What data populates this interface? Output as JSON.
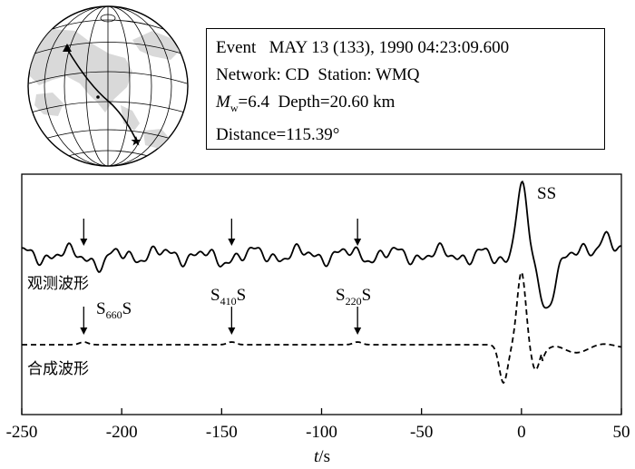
{
  "event_info": {
    "event_label": "Event",
    "event_value": "MAY 13 (133), 1990  04:23:09.600",
    "network_label": "Network:",
    "network_value": "CD",
    "station_label": "Station:",
    "station_value": "WMQ",
    "magnitude_symbol": "M",
    "magnitude_subscript": "w",
    "magnitude_value": "=6.4",
    "depth_text": "Depth=20.60 km",
    "distance_text": "Distance=115.39°"
  },
  "chart_data": {
    "type": "line",
    "x_range": [
      -250,
      50
    ],
    "x_ticks": [
      -250,
      -200,
      -150,
      -100,
      -50,
      0,
      50
    ],
    "xlabel_italic": "t",
    "xlabel_unit": "/s",
    "grid": false,
    "series": [
      {
        "name": "观测波形",
        "style": "solid"
      },
      {
        "name": "合成波形",
        "style": "dashed"
      }
    ],
    "phase_markers": [
      {
        "base": "S",
        "sub": "660",
        "tail": "S",
        "time": -219
      },
      {
        "base": "S",
        "sub": "410",
        "tail": "S",
        "time": -145
      },
      {
        "base": "S",
        "sub": "220",
        "tail": "S",
        "time": -82
      }
    ],
    "main_phase": {
      "label": "SS",
      "time": 0
    }
  },
  "colors": {
    "line": "#000000",
    "land": "#d9d9d9",
    "background": "#ffffff"
  }
}
